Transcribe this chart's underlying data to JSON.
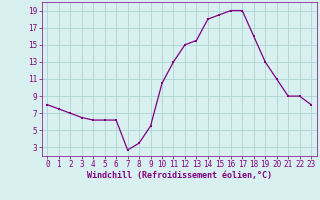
{
  "x": [
    0,
    1,
    2,
    3,
    4,
    5,
    6,
    7,
    8,
    9,
    10,
    11,
    12,
    13,
    14,
    15,
    16,
    17,
    18,
    19,
    20,
    21,
    22,
    23
  ],
  "y": [
    8.0,
    7.5,
    7.0,
    6.5,
    6.2,
    6.2,
    6.2,
    2.7,
    3.5,
    5.5,
    10.5,
    13.0,
    15.0,
    15.5,
    18.0,
    18.5,
    19.0,
    19.0,
    16.0,
    13.0,
    11.0,
    9.0,
    9.0,
    8.0
  ],
  "line_color": "#800080",
  "marker": "s",
  "marker_size": 2.0,
  "bg_color": "#d8f0f0",
  "grid_color": "#aed4d4",
  "xlabel": "Windchill (Refroidissement éolien,°C)",
  "xlabel_color": "#800080",
  "tick_color": "#800080",
  "spine_color": "#800080",
  "ylim": [
    2.0,
    20.0
  ],
  "xlim": [
    -0.5,
    23.5
  ],
  "yticks": [
    3,
    5,
    7,
    9,
    11,
    13,
    15,
    17,
    19
  ],
  "xticks": [
    0,
    1,
    2,
    3,
    4,
    5,
    6,
    7,
    8,
    9,
    10,
    11,
    12,
    13,
    14,
    15,
    16,
    17,
    18,
    19,
    20,
    21,
    22,
    23
  ],
  "tick_fontsize": 5.5,
  "xlabel_fontsize": 6.0,
  "linewidth": 0.9
}
